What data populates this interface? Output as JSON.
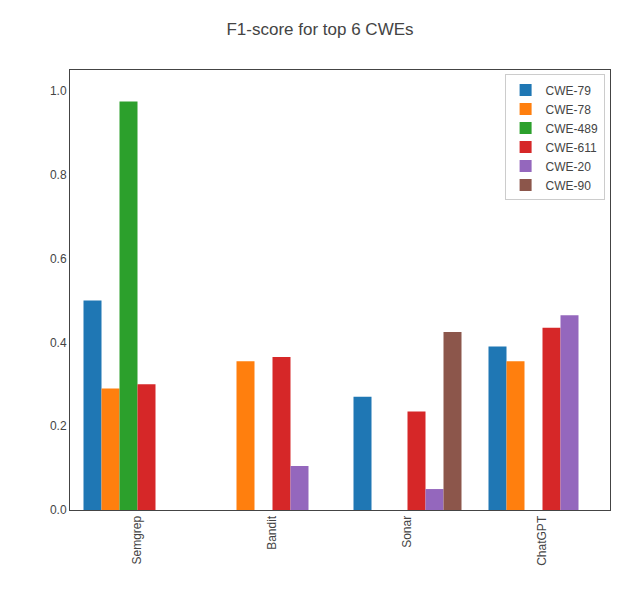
{
  "chart_data": {
    "type": "bar",
    "title": "F1-score for top 6 CWEs",
    "categories": [
      "Semgrep",
      "Bandit",
      "Sonar",
      "ChatGPT"
    ],
    "series": [
      {
        "name": "CWE-79",
        "color": "#1f77b4",
        "values": [
          0.5,
          0.0,
          0.27,
          0.39
        ]
      },
      {
        "name": "CWE-78",
        "color": "#ff7f0e",
        "values": [
          0.29,
          0.355,
          0.0,
          0.355
        ]
      },
      {
        "name": "CWE-489",
        "color": "#2ca02c",
        "values": [
          0.975,
          0.0,
          0.0,
          0.0
        ]
      },
      {
        "name": "CWE-611",
        "color": "#d62728",
        "values": [
          0.3,
          0.365,
          0.235,
          0.435
        ]
      },
      {
        "name": "CWE-20",
        "color": "#9467bd",
        "values": [
          0.0,
          0.105,
          0.05,
          0.465
        ]
      },
      {
        "name": "CWE-90",
        "color": "#8c564b",
        "values": [
          0.0,
          0.0,
          0.425,
          0.0
        ]
      }
    ],
    "ylim": [
      0,
      1.05
    ],
    "yticks": [
      {
        "value": 0.0,
        "label": "0.0"
      },
      0.2,
      0.4,
      0.6,
      0.8,
      {
        "value": 1.0,
        "label": "1.0"
      }
    ],
    "grid": false,
    "legend": "upper right"
  }
}
